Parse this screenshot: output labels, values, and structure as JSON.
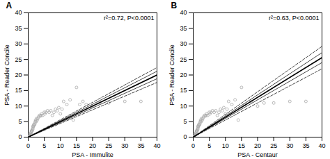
{
  "chart_data": [
    {
      "type": "scatter",
      "title": "A",
      "annotation": "r²=0.72, P<0.0001",
      "xlabel": "PSA - Immulite",
      "ylabel": "PSA - Reader Concile",
      "xlim": [
        0,
        40
      ],
      "ylim": [
        0,
        40
      ],
      "xticks": [
        0,
        5,
        10,
        15,
        20,
        25,
        30,
        35,
        40
      ],
      "yticks": [
        0,
        5,
        10,
        15,
        20,
        25,
        30,
        35,
        40
      ],
      "grid": false,
      "series": [
        {
          "type": "scatter",
          "color": "#aaaaaa",
          "marker": "circle",
          "x": [
            0.3,
            0.4,
            0.5,
            0.5,
            0.6,
            0.7,
            0.8,
            0.9,
            1.0,
            1.0,
            1.1,
            1.2,
            1.3,
            1.4,
            1.5,
            1.5,
            1.6,
            1.7,
            1.8,
            2.0,
            2.1,
            2.2,
            2.3,
            2.5,
            2.6,
            2.8,
            3.0,
            3.2,
            3.5,
            3.8,
            4.0,
            4.2,
            4.5,
            5.0,
            5.2,
            5.5,
            6.0,
            6.5,
            7.0,
            7.5,
            8.0,
            8.5,
            9.0,
            9.5,
            10.0,
            10.5,
            11.0,
            12.0,
            13.0,
            14.0,
            15.0,
            16.0,
            17.0,
            18.0,
            20.0,
            22.0,
            25.0,
            30.0,
            35.0
          ],
          "values": [
            0.3,
            0.4,
            0.5,
            1.0,
            0.7,
            0.8,
            1.0,
            1.5,
            1.0,
            2.0,
            2.0,
            2.0,
            2.5,
            2.5,
            3.0,
            3.5,
            3.5,
            4.0,
            3.8,
            4.0,
            4.5,
            5.0,
            5.5,
            5.0,
            6.0,
            5.5,
            6.0,
            6.5,
            7.0,
            6.8,
            7.0,
            7.5,
            7.0,
            8.0,
            7.5,
            8.0,
            8.5,
            8.0,
            8.5,
            7.0,
            8.0,
            9.0,
            8.5,
            9.5,
            7.5,
            9.0,
            11.5,
            10.5,
            12.0,
            5.5,
            16.0,
            10.5,
            11.5,
            10.5,
            10.0,
            11.0,
            11.0,
            11.5,
            11.5
          ]
        },
        {
          "type": "line",
          "color": "#444444",
          "line_style": "dashed",
          "x": [
            0,
            40
          ],
          "values": [
            0.0,
            22.4
          ]
        },
        {
          "type": "line",
          "color": "#444444",
          "line_style": "dashed",
          "x": [
            0,
            40
          ],
          "values": [
            0.0,
            17.6
          ]
        },
        {
          "type": "line",
          "color": "#444444",
          "line_style": "solid",
          "x": [
            0,
            40
          ],
          "values": [
            0.0,
            21.2
          ]
        },
        {
          "type": "line",
          "color": "#444444",
          "line_style": "solid",
          "x": [
            0,
            40
          ],
          "values": [
            0.0,
            18.8
          ]
        },
        {
          "type": "line",
          "color": "#000000",
          "line_style": "solid",
          "x": [
            0,
            40
          ],
          "values": [
            0.0,
            20.0
          ]
        }
      ]
    },
    {
      "type": "scatter",
      "title": "B",
      "annotation": "r²=0.63, P<0.0001",
      "xlabel": "PSA - Centaur",
      "ylabel": "PSA - Reader Concile",
      "xlim": [
        0,
        40
      ],
      "ylim": [
        0,
        40
      ],
      "xticks": [
        0,
        5,
        10,
        15,
        20,
        25,
        30,
        35,
        40
      ],
      "yticks": [
        0,
        5,
        10,
        15,
        20,
        25,
        30,
        35,
        40
      ],
      "grid": false,
      "series": [
        {
          "type": "scatter",
          "color": "#aaaaaa",
          "marker": "circle",
          "x": [
            0.3,
            0.4,
            0.5,
            0.5,
            0.6,
            0.7,
            0.8,
            0.9,
            1.0,
            1.0,
            1.1,
            1.2,
            1.3,
            1.4,
            1.5,
            1.5,
            1.6,
            1.7,
            1.8,
            2.0,
            2.1,
            2.2,
            2.3,
            2.5,
            2.6,
            2.8,
            3.0,
            3.2,
            3.5,
            3.8,
            4.0,
            4.2,
            4.5,
            5.0,
            5.2,
            5.5,
            6.0,
            6.5,
            7.0,
            7.5,
            8.0,
            8.5,
            9.0,
            9.5,
            10.0,
            10.5,
            11.0,
            12.0,
            13.0,
            14.0,
            15.0,
            16.0,
            18.0,
            20.0,
            22.0,
            25.0,
            30.0,
            35.0
          ],
          "values": [
            0.3,
            0.4,
            0.5,
            1.0,
            0.7,
            0.8,
            1.0,
            1.5,
            1.0,
            2.0,
            2.0,
            2.0,
            2.5,
            2.5,
            3.0,
            3.5,
            3.5,
            4.0,
            3.8,
            4.0,
            4.5,
            5.0,
            5.5,
            5.0,
            6.0,
            5.5,
            6.0,
            6.5,
            7.0,
            6.8,
            7.0,
            7.5,
            7.0,
            8.0,
            7.5,
            8.0,
            8.5,
            8.0,
            8.5,
            7.0,
            8.0,
            9.0,
            8.5,
            9.5,
            7.5,
            9.0,
            11.5,
            10.5,
            12.0,
            5.5,
            16.0,
            10.5,
            11.5,
            10.0,
            11.0,
            11.0,
            11.5,
            11.5
          ]
        },
        {
          "type": "line",
          "color": "#444444",
          "line_style": "dashed",
          "x": [
            0,
            40
          ],
          "values": [
            0.0,
            29.2
          ]
        },
        {
          "type": "line",
          "color": "#444444",
          "line_style": "dashed",
          "x": [
            0,
            40
          ],
          "values": [
            0.0,
            22.0
          ]
        },
        {
          "type": "line",
          "color": "#444444",
          "line_style": "solid",
          "x": [
            0,
            40
          ],
          "values": [
            0.0,
            27.2
          ]
        },
        {
          "type": "line",
          "color": "#444444",
          "line_style": "solid",
          "x": [
            0,
            40
          ],
          "values": [
            0.0,
            24.0
          ]
        },
        {
          "type": "line",
          "color": "#000000",
          "line_style": "solid",
          "x": [
            0,
            40
          ],
          "values": [
            0.0,
            25.6
          ]
        }
      ]
    }
  ]
}
